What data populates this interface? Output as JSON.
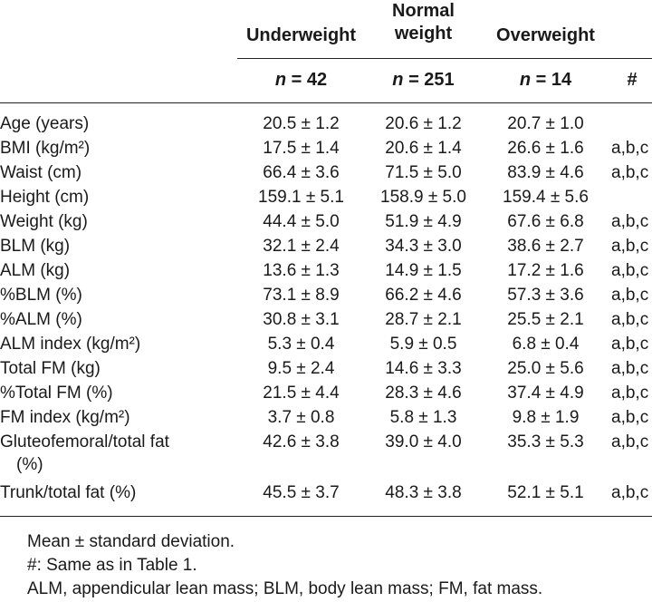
{
  "table": {
    "headers": {
      "underweight": "Underweight",
      "normal_line1": "Normal",
      "normal_line2": "weight",
      "overweight": "Overweight",
      "n_prefix": "n",
      "n_underweight": " = 42",
      "n_normal": " = 251",
      "n_overweight": " = 14",
      "hash": "#"
    },
    "rows": [
      {
        "label": "Age (years)",
        "underweight": "20.5 ± 1.2",
        "normal": "20.6 ± 1.2",
        "overweight": "20.7 ± 1.0",
        "sig": ""
      },
      {
        "label": "BMI (kg/m²)",
        "underweight": "17.5 ± 1.4",
        "normal": "20.6 ± 1.4",
        "overweight": "26.6 ± 1.6",
        "sig": "a,b,c"
      },
      {
        "label": "Waist (cm)",
        "underweight": "66.4 ± 3.6",
        "normal": "71.5 ± 5.0",
        "overweight": "83.9 ± 4.6",
        "sig": "a,b,c"
      },
      {
        "label": "Height (cm)",
        "underweight": "159.1 ± 5.1",
        "normal": "158.9 ± 5.0",
        "overweight": "159.4 ± 5.6",
        "sig": ""
      },
      {
        "label": "Weight (kg)",
        "underweight": "44.4 ± 5.0",
        "normal": "51.9 ± 4.9",
        "overweight": "67.6 ± 6.8",
        "sig": "a,b,c"
      },
      {
        "label": "BLM (kg)",
        "underweight": "32.1 ± 2.4",
        "normal": "34.3 ± 3.0",
        "overweight": "38.6 ± 2.7",
        "sig": "a,b,c"
      },
      {
        "label": "ALM (kg)",
        "underweight": "13.6 ± 1.3",
        "normal": "14.9 ± 1.5",
        "overweight": "17.2 ± 1.6",
        "sig": "a,b,c"
      },
      {
        "label": "%BLM (%)",
        "underweight": "73.1 ± 8.9",
        "normal": "66.2 ± 4.6",
        "overweight": "57.3 ± 3.6",
        "sig": "a,b,c"
      },
      {
        "label": "%ALM (%)",
        "underweight": "30.8 ± 3.1",
        "normal": "28.7 ± 2.1",
        "overweight": "25.5 ± 2.1",
        "sig": "a,b,c"
      },
      {
        "label": "ALM index (kg/m²)",
        "underweight": "5.3 ± 0.4",
        "normal": "5.9 ± 0.5",
        "overweight": "6.8 ± 0.4",
        "sig": "a,b,c"
      },
      {
        "label": "Total FM (kg)",
        "underweight": "9.5 ± 2.4",
        "normal": "14.6 ± 3.3",
        "overweight": "25.0 ± 5.6",
        "sig": "a,b,c"
      },
      {
        "label": "%Total FM (%)",
        "underweight": "21.5 ± 4.4",
        "normal": "28.3 ± 4.6",
        "overweight": "37.4 ± 4.9",
        "sig": "a,b,c"
      },
      {
        "label": "FM index (kg/m²)",
        "underweight": "3.7 ± 0.8",
        "normal": "5.8 ± 1.3",
        "overweight": "9.8 ± 1.9",
        "sig": "a,b,c"
      },
      {
        "label": "Gluteofemoral/total fat",
        "label_cont": "(%)",
        "underweight": "42.6 ± 3.8",
        "normal": "39.0 ± 4.0",
        "overweight": "35.3 ± 5.3",
        "sig": "a,b,c"
      },
      {
        "label": "Trunk/total fat (%)",
        "underweight": "45.5 ± 3.7",
        "normal": "48.3 ± 3.8",
        "overweight": "52.1 ± 5.1",
        "sig": "a,b,c"
      }
    ]
  },
  "footnotes": [
    "Mean ± standard deviation.",
    "#: Same as in Table 1.",
    "ALM, appendicular lean mass; BLM, body lean mass; FM, fat mass."
  ]
}
